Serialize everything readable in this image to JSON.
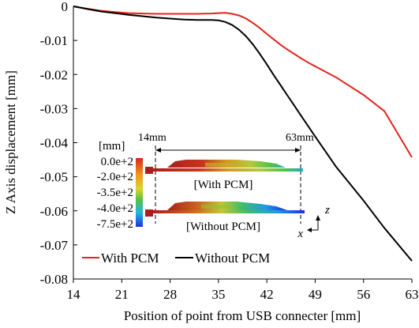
{
  "chart_data": {
    "type": "line",
    "xlabel": "Position of point from USB connecter [mm]",
    "ylabel": "Z Axis displacement [mm]",
    "xlim": [
      14,
      63
    ],
    "ylim": [
      -0.08,
      0
    ],
    "x_ticks": [
      14,
      21,
      28,
      35,
      42,
      49,
      56,
      63
    ],
    "y_ticks": [
      0,
      -0.01,
      -0.02,
      -0.03,
      -0.04,
      -0.05,
      -0.06,
      -0.07,
      -0.08
    ],
    "x_tick_labels": [
      "14",
      "21",
      "28",
      "35",
      "42",
      "49",
      "56",
      "63"
    ],
    "y_tick_labels": [
      "0",
      "-0.01",
      "-0.02",
      "-0.03",
      "-0.04",
      "-0.05",
      "-0.06",
      "-0.07",
      "-0.08"
    ],
    "grid": false,
    "legend_position": "bottom-left",
    "series": [
      {
        "name": "With PCM",
        "color": "#e3231b",
        "x": [
          14,
          16,
          18,
          20,
          22,
          24,
          26,
          28,
          30,
          32,
          34,
          35,
          36,
          37,
          38,
          39,
          40,
          41,
          42,
          43,
          44,
          45,
          46,
          47,
          48,
          49,
          52,
          56,
          59,
          63
        ],
        "y": [
          0,
          -0.0007,
          -0.0013,
          -0.0017,
          -0.002,
          -0.0021,
          -0.0022,
          -0.0022,
          -0.0022,
          -0.0022,
          -0.0021,
          -0.002,
          -0.0019,
          -0.0022,
          -0.0027,
          -0.0036,
          -0.0049,
          -0.0064,
          -0.0081,
          -0.0097,
          -0.0113,
          -0.0127,
          -0.014,
          -0.0153,
          -0.0165,
          -0.0176,
          -0.0208,
          -0.026,
          -0.0307,
          -0.0443
        ]
      },
      {
        "name": "Without PCM",
        "color": "#000000",
        "x": [
          14,
          16,
          18,
          20,
          22,
          24,
          26,
          28,
          30,
          32,
          33,
          34,
          35,
          36,
          37,
          38,
          39,
          40,
          41,
          42,
          43,
          44,
          45,
          46,
          47,
          48,
          49,
          52,
          56,
          59,
          63
        ],
        "y": [
          0,
          -0.0008,
          -0.0015,
          -0.002,
          -0.0025,
          -0.0029,
          -0.0033,
          -0.0036,
          -0.0039,
          -0.004,
          -0.004,
          -0.004,
          -0.0041,
          -0.0046,
          -0.0055,
          -0.0069,
          -0.0088,
          -0.0112,
          -0.014,
          -0.017,
          -0.0202,
          -0.0232,
          -0.0262,
          -0.0292,
          -0.0322,
          -0.0352,
          -0.0382,
          -0.047,
          -0.057,
          -0.065,
          -0.0747
        ]
      }
    ],
    "inset": {
      "unit_label": "[mm]",
      "colorbar_labels": [
        "0.0e+2",
        "-2.0e+2",
        "-3.5e+2",
        "-4.0e+2",
        "-7.5e+2"
      ],
      "dimension_left": "14mm",
      "dimension_right": "63mm",
      "board_top_label": "[With PCM]",
      "board_bottom_label": "[Without PCM]",
      "axis_z": "z",
      "axis_x": "x"
    }
  }
}
